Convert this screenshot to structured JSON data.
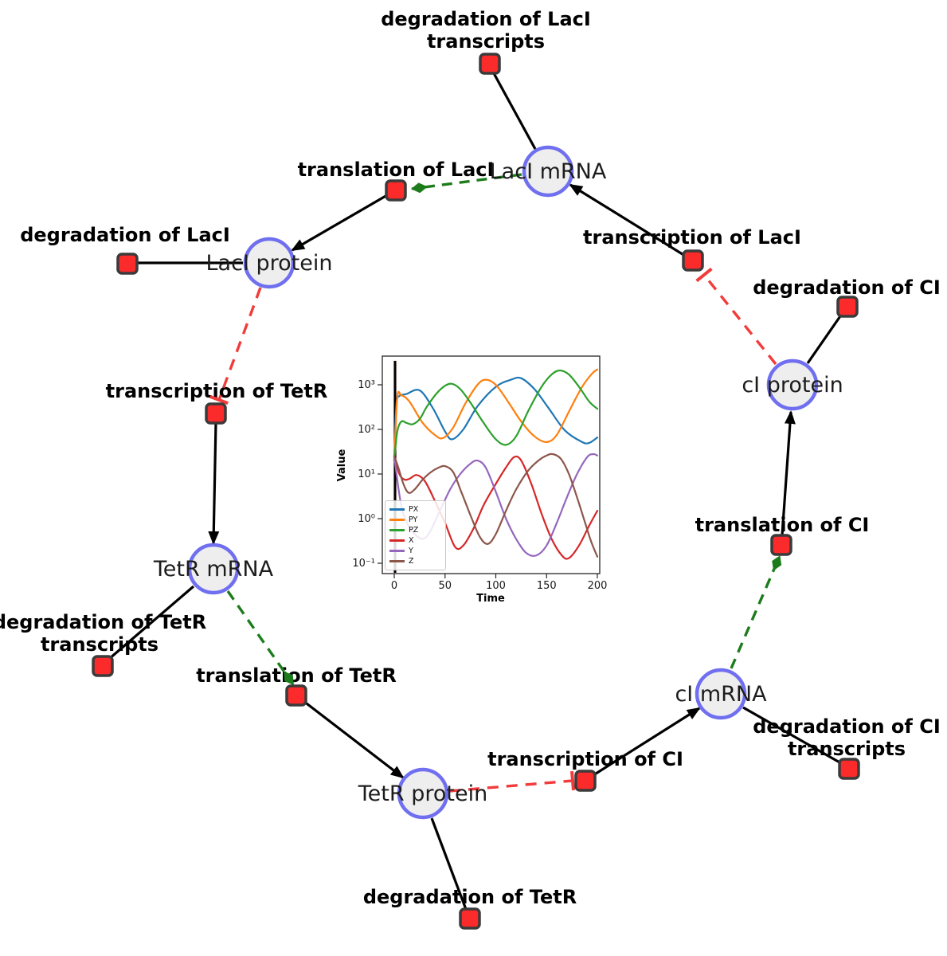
{
  "diagram": {
    "species": [
      {
        "label": "LacI mRNA"
      },
      {
        "label": "LacI protein"
      },
      {
        "label": "TetR mRNA"
      },
      {
        "label": "TetR protein"
      },
      {
        "label": "cI mRNA"
      },
      {
        "label": "cI protein"
      }
    ],
    "reactions": [
      {
        "label_lines": [
          "degradation of LacI",
          "transcripts"
        ]
      },
      {
        "label_lines": [
          "translation of LacI"
        ]
      },
      {
        "label_lines": [
          "transcription of LacI"
        ]
      },
      {
        "label_lines": [
          "degradation of LacI"
        ]
      },
      {
        "label_lines": [
          "transcription of TetR"
        ]
      },
      {
        "label_lines": [
          "degradation of TetR",
          "transcripts"
        ]
      },
      {
        "label_lines": [
          "translation of TetR"
        ]
      },
      {
        "label_lines": [
          "degradation of TetR"
        ]
      },
      {
        "label_lines": [
          "transcription of CI"
        ]
      },
      {
        "label_lines": [
          "degradation of CI",
          "transcripts"
        ]
      },
      {
        "label_lines": [
          "translation of CI"
        ]
      },
      {
        "label_lines": [
          "degradation of CI"
        ]
      }
    ],
    "edge_types": {
      "reaction_link": "black solid arrow",
      "modifier": "green dashed arrow",
      "inhibition": "red dashed tee"
    },
    "colors": {
      "species_fill": "#eeeeef",
      "species_border": "#6f6ff0",
      "reaction_fill": "#fb2b2b",
      "reaction_border": "#3b3b3b",
      "edge": "#000000",
      "modifier_edge": "#1c7c1c",
      "inhibition_edge": "#f23b3b"
    }
  },
  "chart_data": {
    "type": "line",
    "title": "",
    "xlabel": "Time",
    "ylabel": "Value",
    "x_ticks": [
      "0",
      "50",
      "100",
      "150",
      "200"
    ],
    "y_tick_labels": [
      "10⁻¹",
      "10⁰",
      "10¹",
      "10²",
      "10³"
    ],
    "y_scale": "log",
    "xlim": [
      0,
      200
    ],
    "ylim": [
      0.09,
      4000
    ],
    "grid": false,
    "legend_position": "lower left",
    "annotations": [
      {
        "type": "vline",
        "x": 0,
        "color": "#000000"
      }
    ],
    "series": [
      {
        "name": "PX",
        "color": "#1f77b4",
        "points": [
          [
            0,
            20
          ],
          [
            2,
            350
          ],
          [
            5,
            560
          ],
          [
            12,
            620
          ],
          [
            25,
            750
          ],
          [
            38,
            300
          ],
          [
            50,
            90
          ],
          [
            57,
            60
          ],
          [
            68,
            100
          ],
          [
            82,
            330
          ],
          [
            100,
            900
          ],
          [
            115,
            1300
          ],
          [
            125,
            1400
          ],
          [
            138,
            800
          ],
          [
            152,
            300
          ],
          [
            168,
            95
          ],
          [
            185,
            52
          ],
          [
            192,
            50
          ],
          [
            200,
            66
          ]
        ]
      },
      {
        "name": "PY",
        "color": "#ff7f0e",
        "points": [
          [
            0,
            20
          ],
          [
            3,
            520
          ],
          [
            7,
            580
          ],
          [
            15,
            420
          ],
          [
            28,
            140
          ],
          [
            40,
            75
          ],
          [
            48,
            64
          ],
          [
            58,
            110
          ],
          [
            70,
            380
          ],
          [
            82,
            1000
          ],
          [
            90,
            1300
          ],
          [
            100,
            1000
          ],
          [
            112,
            420
          ],
          [
            125,
            150
          ],
          [
            138,
            70
          ],
          [
            150,
            52
          ],
          [
            160,
            75
          ],
          [
            172,
            250
          ],
          [
            185,
            900
          ],
          [
            195,
            1800
          ],
          [
            200,
            2200
          ]
        ]
      },
      {
        "name": "PZ",
        "color": "#2ca02c",
        "points": [
          [
            0,
            20
          ],
          [
            3,
            90
          ],
          [
            7,
            150
          ],
          [
            12,
            140
          ],
          [
            18,
            130
          ],
          [
            25,
            170
          ],
          [
            32,
            320
          ],
          [
            42,
            650
          ],
          [
            50,
            950
          ],
          [
            57,
            1050
          ],
          [
            65,
            800
          ],
          [
            75,
            400
          ],
          [
            88,
            140
          ],
          [
            100,
            60
          ],
          [
            110,
            45
          ],
          [
            120,
            70
          ],
          [
            132,
            260
          ],
          [
            145,
            900
          ],
          [
            155,
            1700
          ],
          [
            163,
            2100
          ],
          [
            172,
            1700
          ],
          [
            182,
            900
          ],
          [
            192,
            420
          ],
          [
            200,
            290
          ]
        ]
      },
      {
        "name": "X",
        "color": "#d62728",
        "points": [
          [
            0,
            25
          ],
          [
            5,
            10
          ],
          [
            10,
            7.5
          ],
          [
            15,
            7.8
          ],
          [
            22,
            9.5
          ],
          [
            30,
            7
          ],
          [
            40,
            2.5
          ],
          [
            50,
            0.8
          ],
          [
            60,
            0.23
          ],
          [
            68,
            0.25
          ],
          [
            78,
            0.6
          ],
          [
            88,
            2
          ],
          [
            100,
            6
          ],
          [
            110,
            14
          ],
          [
            118,
            24
          ],
          [
            125,
            20
          ],
          [
            135,
            6
          ],
          [
            145,
            1.3
          ],
          [
            155,
            0.35
          ],
          [
            165,
            0.15
          ],
          [
            172,
            0.13
          ],
          [
            182,
            0.25
          ],
          [
            192,
            0.7
          ],
          [
            200,
            1.5
          ]
        ]
      },
      {
        "name": "Y",
        "color": "#9467bd",
        "points": [
          [
            0,
            25
          ],
          [
            4,
            5
          ],
          [
            8,
            1.5
          ],
          [
            14,
            0.7
          ],
          [
            20,
            0.45
          ],
          [
            28,
            0.35
          ],
          [
            35,
            0.5
          ],
          [
            45,
            1.5
          ],
          [
            55,
            4.5
          ],
          [
            65,
            10
          ],
          [
            75,
            17
          ],
          [
            82,
            20
          ],
          [
            90,
            14
          ],
          [
            100,
            4
          ],
          [
            110,
            1
          ],
          [
            120,
            0.35
          ],
          [
            130,
            0.17
          ],
          [
            140,
            0.15
          ],
          [
            150,
            0.25
          ],
          [
            160,
            0.8
          ],
          [
            170,
            3
          ],
          [
            180,
            10
          ],
          [
            190,
            24
          ],
          [
            196,
            28
          ],
          [
            200,
            26
          ]
        ]
      },
      {
        "name": "Z",
        "color": "#8c564b",
        "points": [
          [
            0,
            25
          ],
          [
            4,
            14
          ],
          [
            9,
            6
          ],
          [
            14,
            3.8
          ],
          [
            20,
            4.5
          ],
          [
            28,
            7.5
          ],
          [
            36,
            11
          ],
          [
            44,
            14
          ],
          [
            50,
            15
          ],
          [
            58,
            11
          ],
          [
            66,
            4
          ],
          [
            75,
            1.2
          ],
          [
            84,
            0.4
          ],
          [
            92,
            0.27
          ],
          [
            100,
            0.45
          ],
          [
            110,
            1.5
          ],
          [
            120,
            4.5
          ],
          [
            132,
            12
          ],
          [
            142,
            20
          ],
          [
            150,
            26
          ],
          [
            156,
            28
          ],
          [
            164,
            22
          ],
          [
            172,
            10
          ],
          [
            180,
            3
          ],
          [
            188,
            0.8
          ],
          [
            194,
            0.3
          ],
          [
            200,
            0.14
          ]
        ]
      }
    ]
  }
}
